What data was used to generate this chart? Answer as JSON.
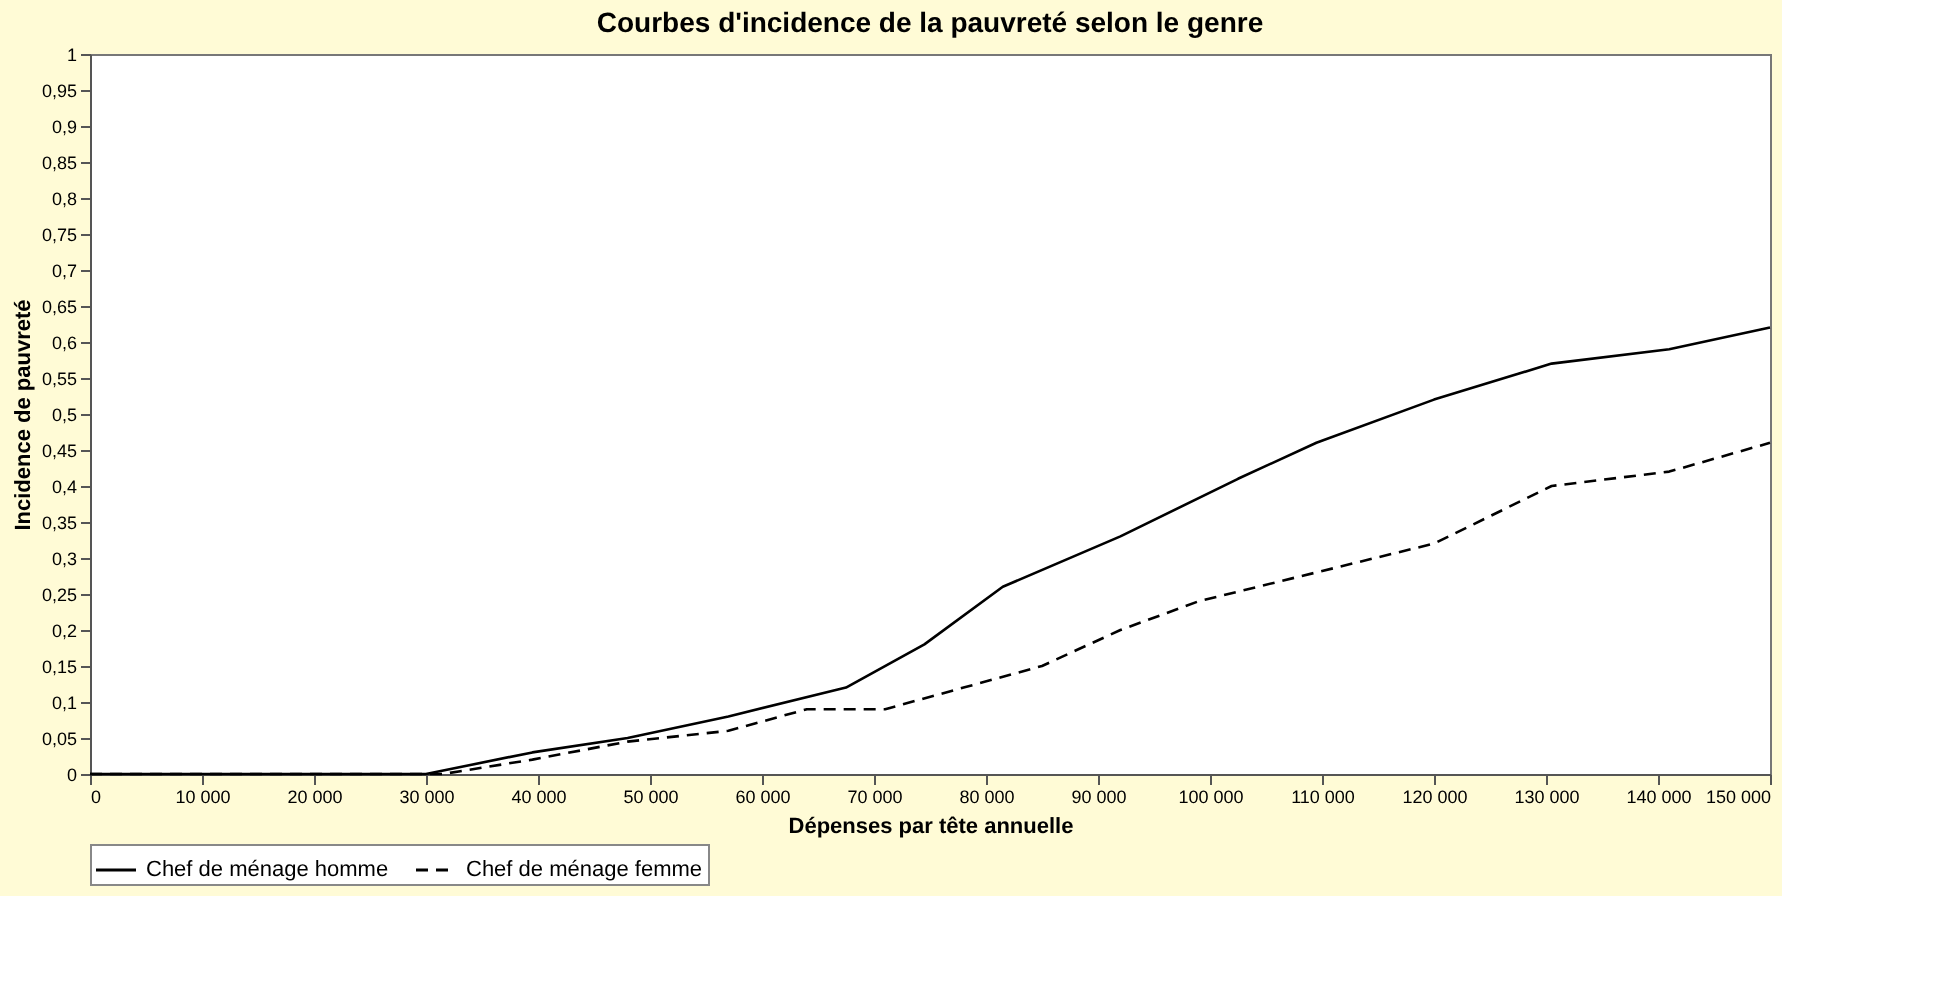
{
  "chart_data": {
    "type": "line",
    "title": "Courbes d'incidence de la pauvreté selon le genre",
    "xlabel": "Dépenses par tête annuelle",
    "ylabel": "Incidence de pauvreté",
    "xlim": [
      0,
      150000
    ],
    "xticks": [
      {
        "value": 0,
        "label": "0"
      },
      {
        "value": 10000,
        "label": "10 000"
      },
      {
        "value": 20000,
        "label": "20 000"
      },
      {
        "value": 30000,
        "label": "30 000"
      },
      {
        "value": 40000,
        "label": "40 000"
      },
      {
        "value": 50000,
        "label": "50 000"
      },
      {
        "value": 60000,
        "label": "60 000"
      },
      {
        "value": 70000,
        "label": "70 000"
      },
      {
        "value": 80000,
        "label": "80 000"
      },
      {
        "value": 90000,
        "label": "90 000"
      },
      {
        "value": 100000,
        "label": "100 000"
      },
      {
        "value": 110000,
        "label": "110 000"
      },
      {
        "value": 120000,
        "label": "120 000"
      },
      {
        "value": 130000,
        "label": "130 000"
      },
      {
        "value": 140000,
        "label": "140 000"
      },
      {
        "value": 150000,
        "label": "150 000"
      }
    ],
    "ylim": [
      0,
      1
    ],
    "yticks": [
      {
        "value": 0,
        "label": "0"
      },
      {
        "value": 0.05,
        "label": "0,05"
      },
      {
        "value": 0.1,
        "label": "0,1"
      },
      {
        "value": 0.15,
        "label": "0,15"
      },
      {
        "value": 0.2,
        "label": "0,2"
      },
      {
        "value": 0.25,
        "label": "0,25"
      },
      {
        "value": 0.3,
        "label": "0,3"
      },
      {
        "value": 0.35,
        "label": "0,35"
      },
      {
        "value": 0.4,
        "label": "0,4"
      },
      {
        "value": 0.45,
        "label": "0,45"
      },
      {
        "value": 0.5,
        "label": "0,5"
      },
      {
        "value": 0.55,
        "label": "0,55"
      },
      {
        "value": 0.6,
        "label": "0,6"
      },
      {
        "value": 0.65,
        "label": "0,65"
      },
      {
        "value": 0.7,
        "label": "0,7"
      },
      {
        "value": 0.75,
        "label": "0,75"
      },
      {
        "value": 0.8,
        "label": "0,8"
      },
      {
        "value": 0.85,
        "label": "0,85"
      },
      {
        "value": 0.9,
        "label": "0,9"
      },
      {
        "value": 0.95,
        "label": "0,95"
      },
      {
        "value": 1,
        "label": "1"
      }
    ],
    "grid": false,
    "legend": "bottom",
    "series": [
      {
        "name": "Chef de ménage homme",
        "color": "#000000",
        "line_style": "solid",
        "x": [
          0,
          30000,
          39500,
          48000,
          57000,
          67500,
          74500,
          81500,
          92000,
          102500,
          109500,
          120000,
          130500,
          141000,
          150000
        ],
        "values": [
          0,
          0,
          0.03,
          0.05,
          0.08,
          0.12,
          0.18,
          0.26,
          0.33,
          0.41,
          0.46,
          0.52,
          0.57,
          0.59,
          0.62
        ]
      },
      {
        "name": "Chef de ménage femme",
        "color": "#000000",
        "line_style": "dashed",
        "x": [
          0,
          31500,
          39500,
          48000,
          57000,
          64000,
          71000,
          78000,
          85000,
          92000,
          99000,
          109500,
          120000,
          130500,
          141000,
          150000
        ],
        "values": [
          0,
          0,
          0.02,
          0.045,
          0.06,
          0.09,
          0.09,
          0.12,
          0.15,
          0.2,
          0.24,
          0.28,
          0.32,
          0.4,
          0.42,
          0.46
        ]
      }
    ]
  }
}
